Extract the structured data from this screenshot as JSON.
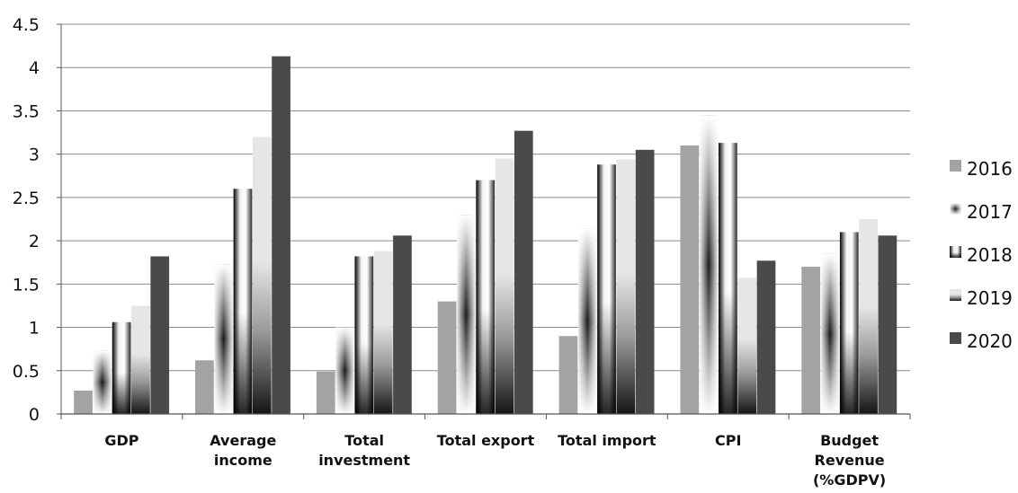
{
  "chart_data": {
    "type": "bar",
    "categories": [
      [
        "GDP"
      ],
      [
        "Average",
        "income"
      ],
      [
        "Total",
        "investment"
      ],
      [
        "Total export"
      ],
      [
        "Total import"
      ],
      [
        "CPI"
      ],
      [
        "Budget",
        "Revenue",
        "(%GDPV)"
      ]
    ],
    "series": [
      {
        "name": "2016",
        "values": [
          0.27,
          0.62,
          0.49,
          1.3,
          0.9,
          3.1,
          1.7
        ],
        "style": "solid",
        "color": "#a3a3a3"
      },
      {
        "name": "2017",
        "values": [
          0.73,
          1.73,
          1.0,
          2.3,
          2.14,
          3.45,
          1.85
        ],
        "style": "diamond",
        "color": "#e0e0e0"
      },
      {
        "name": "2018",
        "values": [
          1.06,
          2.6,
          1.82,
          2.7,
          2.88,
          3.13,
          2.1
        ],
        "style": "vertical",
        "color": "#111111"
      },
      {
        "name": "2019",
        "values": [
          1.25,
          3.2,
          1.88,
          2.95,
          2.94,
          1.57,
          2.25
        ],
        "style": "lightvertical",
        "color": "#e8e8e8"
      },
      {
        "name": "2020",
        "values": [
          1.82,
          4.13,
          2.06,
          3.27,
          3.05,
          1.77,
          2.06
        ],
        "style": "solid",
        "color": "#4a4a4a"
      }
    ],
    "yticks": [
      "0",
      "0.5",
      "1",
      "1.5",
      "2",
      "2.5",
      "3",
      "3.5",
      "4",
      "4.5"
    ],
    "ylim": [
      0,
      4.5
    ],
    "grid": true,
    "legend_position": "right"
  }
}
